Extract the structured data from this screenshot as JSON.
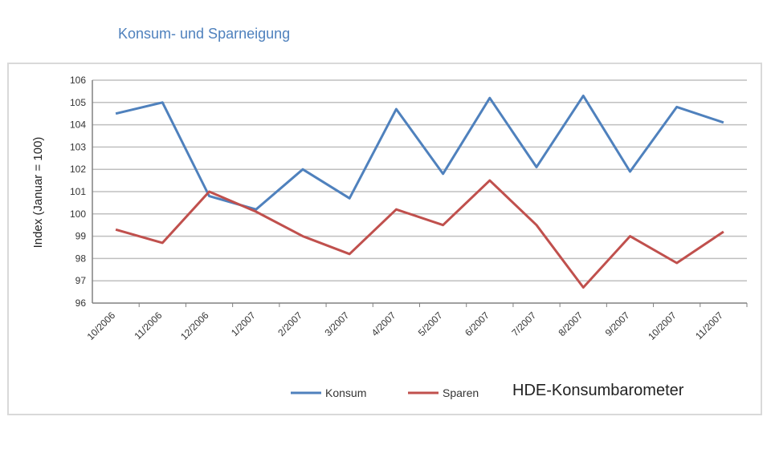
{
  "title": "Konsum- und Sparneigung",
  "brand": "HDE-Konsumbarometer",
  "colors": {
    "konsum": "#4f81bd",
    "sparen": "#c0504d",
    "grid": "#bfbfbf",
    "axis": "#808080"
  },
  "chart_data": {
    "type": "line",
    "title": "Konsum- und Sparneigung",
    "ylabel": "Index (Januar = 100)",
    "xlabel": "",
    "ylim": [
      96,
      106
    ],
    "yticks": [
      96,
      97,
      98,
      99,
      100,
      101,
      102,
      103,
      104,
      105,
      106
    ],
    "grid": true,
    "legend_position": "bottom",
    "categories": [
      "10/2006",
      "11/2006",
      "12/2006",
      "1/2007",
      "2/2007",
      "3/2007",
      "4/2007",
      "5/2007",
      "6/2007",
      "7/2007",
      "8/2007",
      "9/2007",
      "10/2007",
      "11/2007"
    ],
    "series": [
      {
        "name": "Konsum",
        "color": "#4f81bd",
        "values": [
          104.5,
          105.0,
          100.8,
          100.2,
          102.0,
          100.7,
          104.7,
          101.8,
          105.2,
          102.1,
          105.3,
          101.9,
          104.8,
          104.1
        ]
      },
      {
        "name": "Sparen",
        "color": "#c0504d",
        "values": [
          99.3,
          98.7,
          101.0,
          100.1,
          99.0,
          98.2,
          100.2,
          99.5,
          101.5,
          99.5,
          96.7,
          99.0,
          97.8,
          99.2
        ]
      }
    ]
  }
}
